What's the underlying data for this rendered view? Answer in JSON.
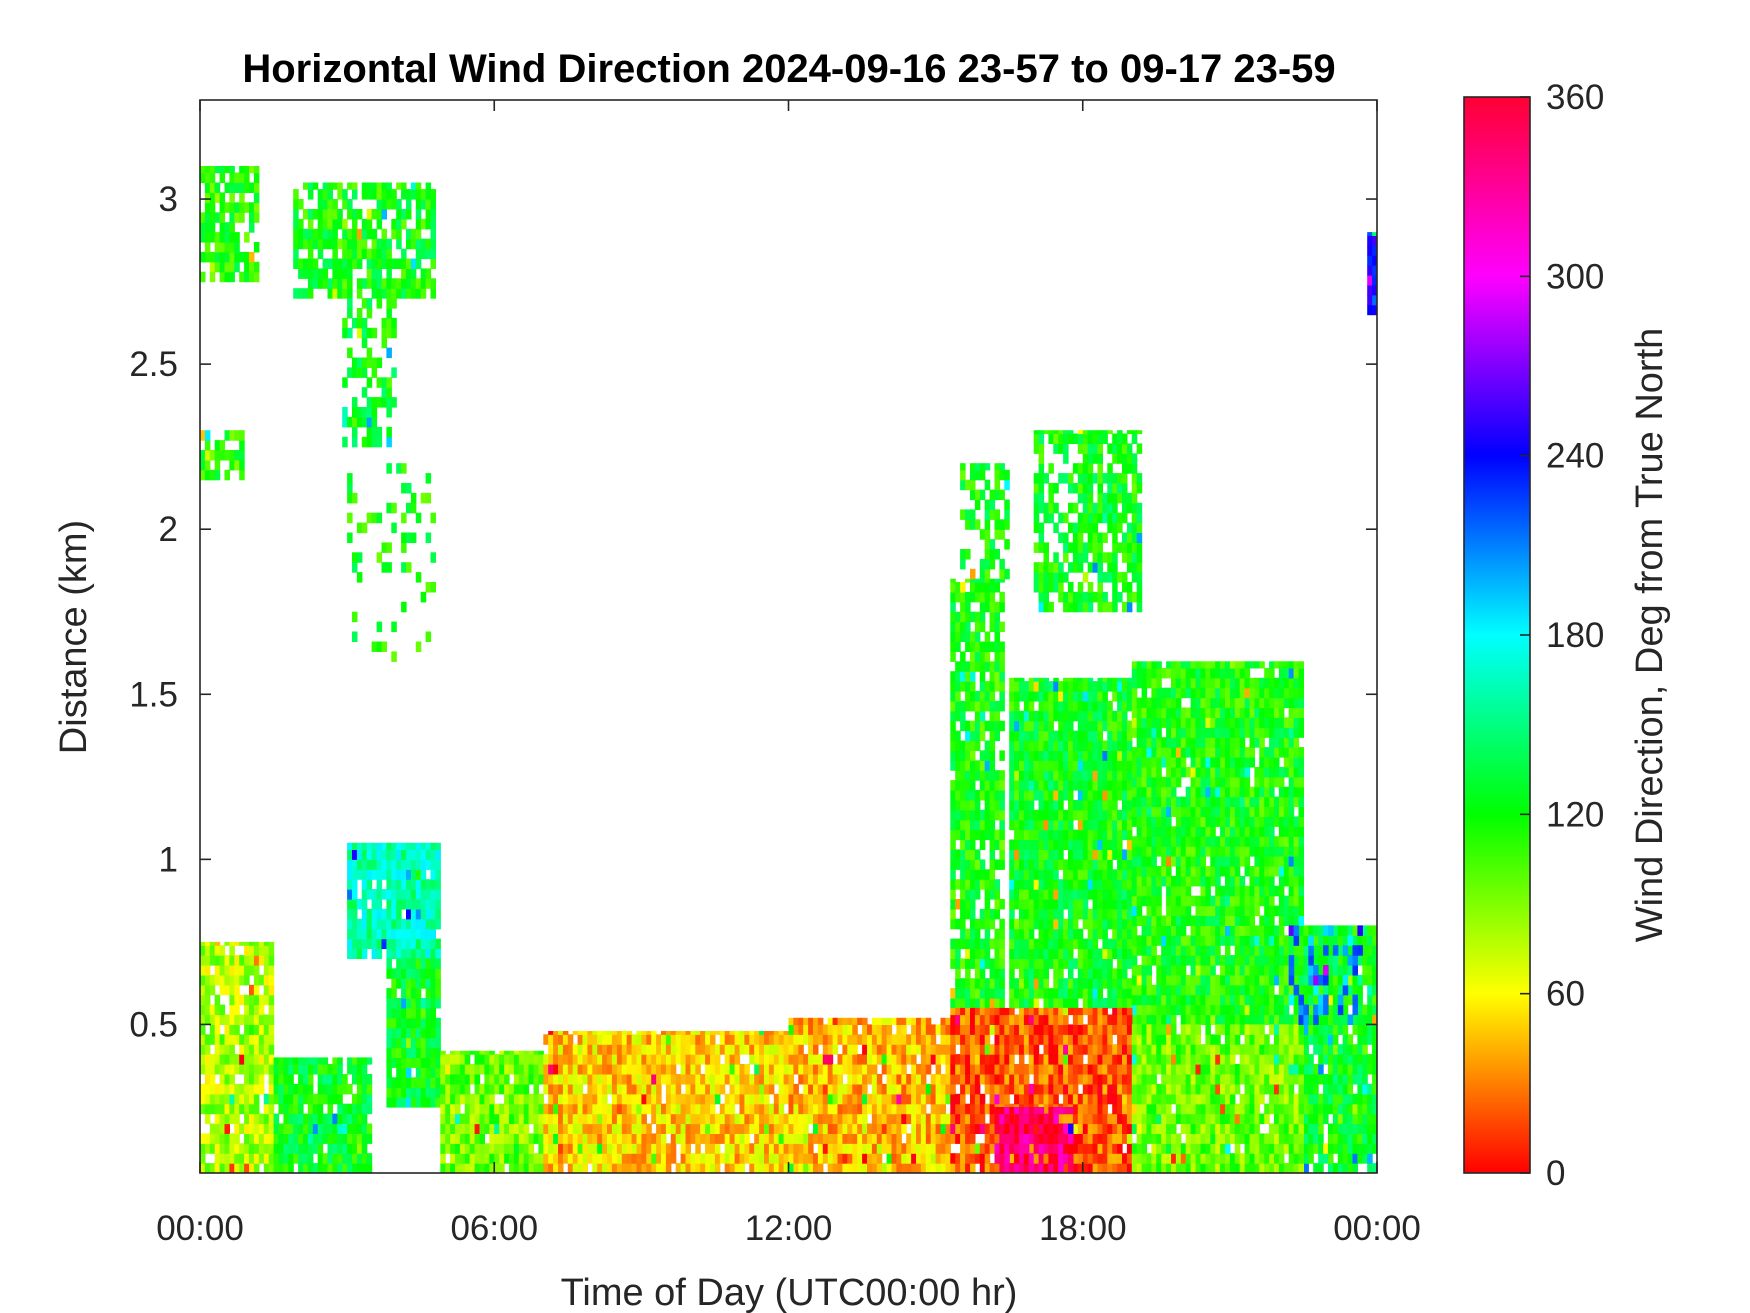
{
  "chart_data": {
    "type": "heatmap",
    "title": "Horizontal Wind Direction 2024-09-16 23-57 to 09-17 23-59",
    "xlabel": "Time of Day (UTC00:00 hr)",
    "ylabel": "Distance (km)",
    "colorbar_label": "Wind Direction, Deg from True North",
    "x_unit": "hours",
    "xlim": [
      0,
      24
    ],
    "ylim": [
      0.05,
      3.3
    ],
    "clim": [
      0,
      360
    ],
    "x_ticks": [
      {
        "value": 0,
        "label": "00:00"
      },
      {
        "value": 6,
        "label": "06:00"
      },
      {
        "value": 12,
        "label": "12:00"
      },
      {
        "value": 18,
        "label": "18:00"
      },
      {
        "value": 24,
        "label": "00:00"
      }
    ],
    "y_ticks": [
      {
        "value": 0.5,
        "label": "0.5"
      },
      {
        "value": 1,
        "label": "1"
      },
      {
        "value": 1.5,
        "label": "1.5"
      },
      {
        "value": 2,
        "label": "2"
      },
      {
        "value": 2.5,
        "label": "2.5"
      },
      {
        "value": 3,
        "label": "3"
      }
    ],
    "colorbar_ticks": [
      {
        "value": 0,
        "label": "0"
      },
      {
        "value": 60,
        "label": "60"
      },
      {
        "value": 120,
        "label": "120"
      },
      {
        "value": 180,
        "label": "180"
      },
      {
        "value": 240,
        "label": "240"
      },
      {
        "value": 300,
        "label": "300"
      },
      {
        "value": 360,
        "label": "360"
      }
    ],
    "colormap": "hsv",
    "regions": [
      {
        "x0": 0.0,
        "x1": 1.2,
        "y0": 2.75,
        "y1": 3.1,
        "value": 115,
        "density": 0.75
      },
      {
        "x0": 0.0,
        "x1": 0.9,
        "y0": 2.15,
        "y1": 2.3,
        "value": 112,
        "density": 0.7
      },
      {
        "x0": 1.9,
        "x1": 4.8,
        "y0": 2.7,
        "y1": 3.05,
        "value": 120,
        "density": 0.75
      },
      {
        "x0": 2.9,
        "x1": 4.0,
        "y0": 2.25,
        "y1": 2.7,
        "value": 125,
        "density": 0.55
      },
      {
        "x0": 3.0,
        "x1": 4.8,
        "y0": 1.6,
        "y1": 2.2,
        "value": 118,
        "density": 0.15
      },
      {
        "x0": 3.0,
        "x1": 4.9,
        "y0": 0.7,
        "y1": 1.05,
        "value": 160,
        "density": 0.95
      },
      {
        "x0": 3.8,
        "x1": 4.9,
        "y0": 0.25,
        "y1": 0.7,
        "value": 125,
        "density": 0.95
      },
      {
        "x0": 0.0,
        "x1": 1.5,
        "y0": 0.05,
        "y1": 0.75,
        "value": 80,
        "density": 0.9
      },
      {
        "x0": 1.5,
        "x1": 3.5,
        "y0": 0.05,
        "y1": 0.4,
        "value": 125,
        "density": 0.9
      },
      {
        "x0": 4.9,
        "x1": 7.0,
        "y0": 0.05,
        "y1": 0.42,
        "value": 95,
        "density": 0.95
      },
      {
        "x0": 7.0,
        "x1": 12.0,
        "y0": 0.05,
        "y1": 0.48,
        "value": 50,
        "density": 0.95
      },
      {
        "x0": 12.0,
        "x1": 15.3,
        "y0": 0.05,
        "y1": 0.52,
        "value": 45,
        "density": 0.95
      },
      {
        "x0": 15.3,
        "x1": 16.4,
        "y0": 0.55,
        "y1": 1.85,
        "value": 118,
        "density": 0.85
      },
      {
        "x0": 15.5,
        "x1": 16.5,
        "y0": 1.85,
        "y1": 2.2,
        "value": 120,
        "density": 0.5
      },
      {
        "x0": 16.5,
        "x1": 19.0,
        "y0": 0.55,
        "y1": 1.55,
        "value": 122,
        "density": 0.95
      },
      {
        "x0": 17.0,
        "x1": 19.2,
        "y0": 1.75,
        "y1": 2.3,
        "value": 122,
        "density": 0.7
      },
      {
        "x0": 19.0,
        "x1": 22.5,
        "y0": 0.5,
        "y1": 1.6,
        "value": 118,
        "density": 0.95
      },
      {
        "x0": 22.5,
        "x1": 24.0,
        "y0": 0.05,
        "y1": 0.8,
        "value": 125,
        "density": 0.9
      },
      {
        "x0": 15.3,
        "x1": 19.0,
        "y0": 0.05,
        "y1": 0.55,
        "value": 20,
        "density": 0.95
      },
      {
        "x0": 16.2,
        "x1": 17.8,
        "y0": 0.05,
        "y1": 0.25,
        "value": 335,
        "density": 0.9
      },
      {
        "x0": 19.0,
        "x1": 22.5,
        "y0": 0.05,
        "y1": 0.5,
        "value": 95,
        "density": 0.95
      },
      {
        "x0": 23.8,
        "x1": 24.0,
        "y0": 2.65,
        "y1": 2.9,
        "value": 230,
        "density": 0.9
      },
      {
        "x0": 22.2,
        "x1": 23.8,
        "y0": 0.5,
        "y1": 0.8,
        "value": 205,
        "density": 0.35
      }
    ]
  }
}
